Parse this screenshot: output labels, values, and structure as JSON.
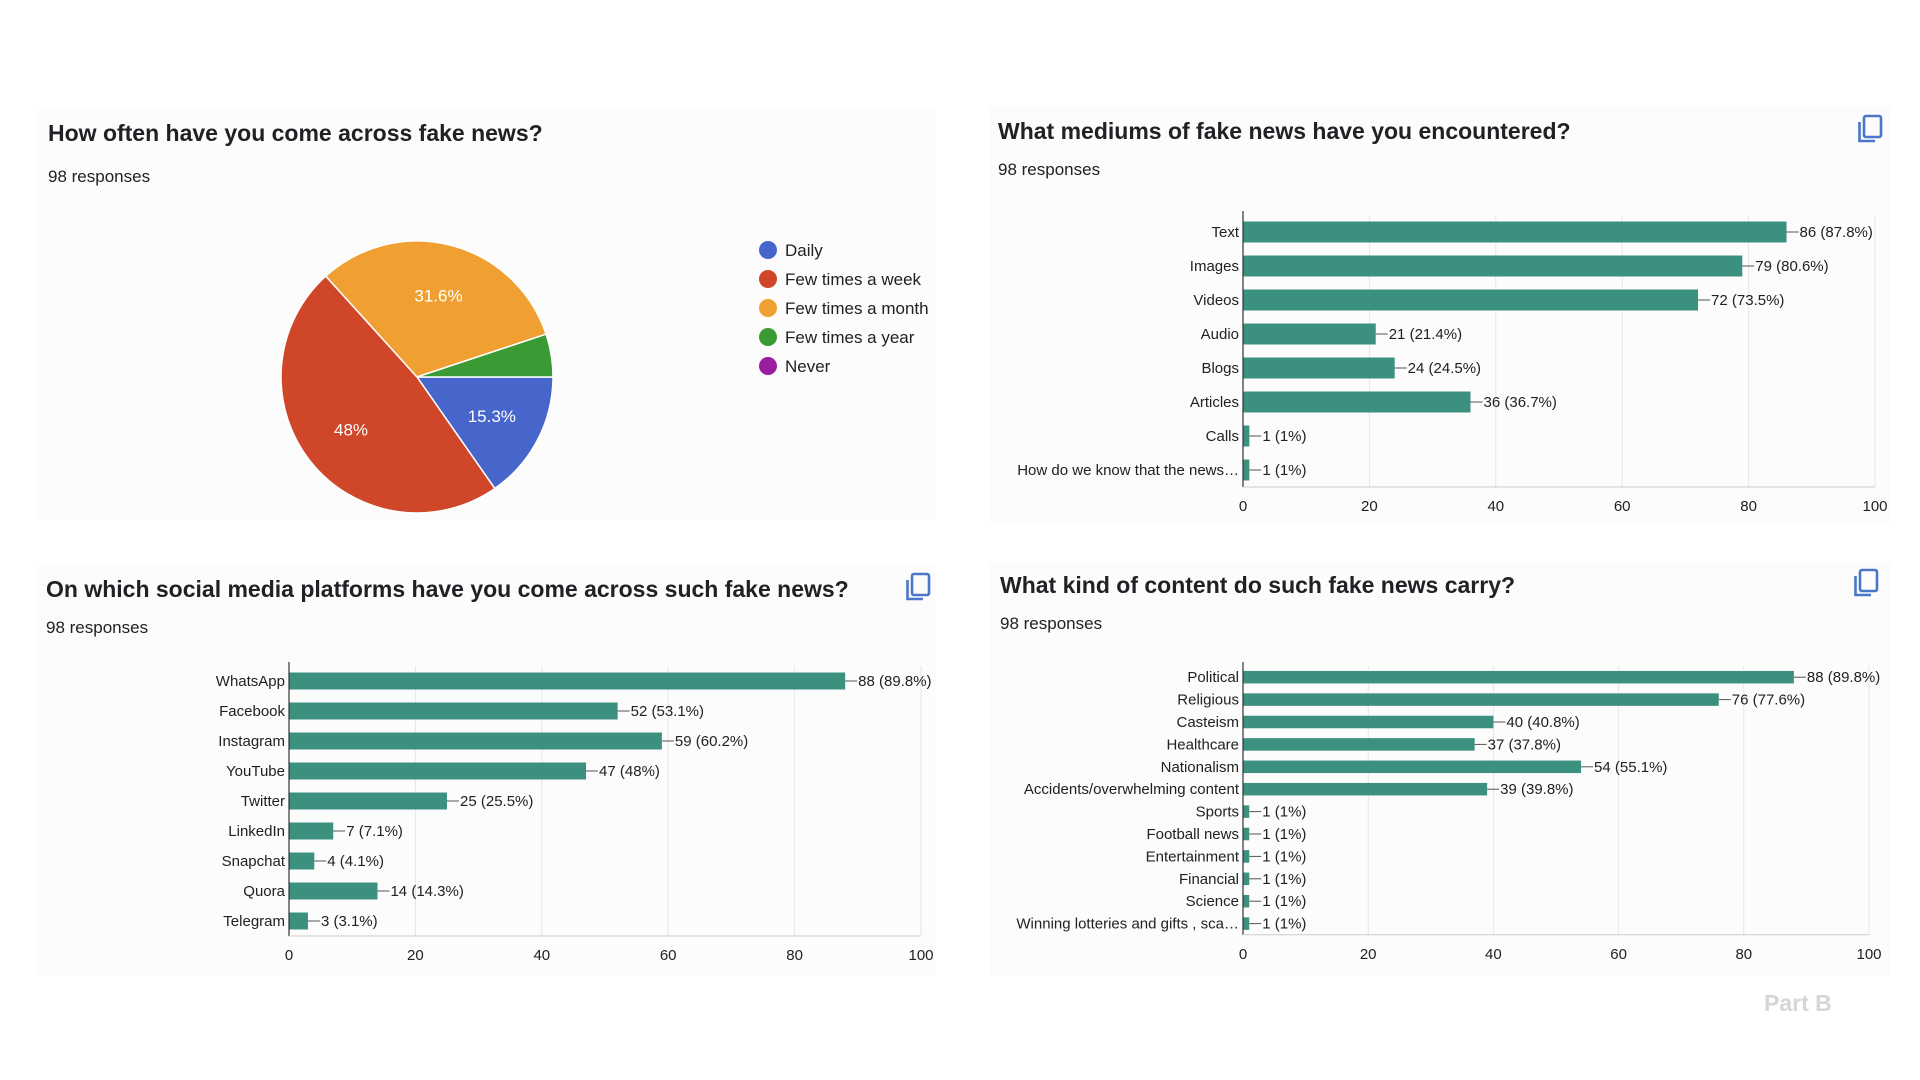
{
  "footer": "Part B",
  "colors": {
    "bar": "#3b9080",
    "axis": "#333333",
    "grid": "#e6e6e6",
    "icon": "#4a76c9"
  },
  "chart_data": [
    {
      "type": "pie",
      "title": "How often have you come across fake news?",
      "subtitle": "98 responses",
      "slices": [
        {
          "label": "Daily",
          "value": 15.3,
          "display": "15.3%",
          "color": "#4766cc"
        },
        {
          "label": "Few times a week",
          "value": 48,
          "display": "48%",
          "color": "#d04628"
        },
        {
          "label": "Few times a month",
          "value": 31.6,
          "display": "31.6%",
          "color": "#f0a032"
        },
        {
          "label": "Few times a year",
          "value": 5.1,
          "display": "",
          "color": "#3a9a33"
        },
        {
          "label": "Never",
          "value": 0,
          "display": "",
          "color": "#991f9f"
        }
      ],
      "legend": "right"
    },
    {
      "type": "bar",
      "orientation": "horizontal",
      "title": "What mediums of fake news have you encountered?",
      "subtitle": "98 responses",
      "categories": [
        "Text",
        "Images",
        "Videos",
        "Audio",
        "Blogs",
        "Articles",
        "Calls",
        "How do we know that the news…"
      ],
      "values": [
        86,
        79,
        72,
        21,
        24,
        36,
        1,
        1
      ],
      "labels": [
        "86 (87.8%)",
        "79 (80.6%)",
        "72 (73.5%)",
        "21 (21.4%)",
        "24 (24.5%)",
        "36 (36.7%)",
        "1 (1%)",
        "1 (1%)"
      ],
      "xlim": [
        0,
        100
      ],
      "xticks": [
        "0",
        "20",
        "40",
        "60",
        "80",
        "100"
      ]
    },
    {
      "type": "bar",
      "orientation": "horizontal",
      "title": "On which social media platforms have you come across such fake news?",
      "subtitle": "98 responses",
      "categories": [
        "WhatsApp",
        "Facebook",
        "Instagram",
        "YouTube",
        "Twitter",
        "LinkedIn",
        "Snapchat",
        "Quora",
        "Telegram"
      ],
      "values": [
        88,
        52,
        59,
        47,
        25,
        7,
        4,
        14,
        3
      ],
      "labels": [
        "88 (89.8%)",
        "52 (53.1%)",
        "59 (60.2%)",
        "47 (48%)",
        "25 (25.5%)",
        "7 (7.1%)",
        "4 (4.1%)",
        "14 (14.3%)",
        "3 (3.1%)"
      ],
      "xlim": [
        0,
        100
      ],
      "xticks": [
        "0",
        "20",
        "40",
        "60",
        "80",
        "100"
      ]
    },
    {
      "type": "bar",
      "orientation": "horizontal",
      "title": "What kind of content do such fake news carry?",
      "subtitle": "98 responses",
      "categories": [
        "Political",
        "Religious",
        "Casteism",
        "Healthcare",
        "Nationalism",
        "Accidents/overwhelming content",
        "Sports",
        "Football news",
        "Entertainment",
        "Financial",
        "Science",
        "Winning lotteries and gifts , sca…"
      ],
      "values": [
        88,
        76,
        40,
        37,
        54,
        39,
        1,
        1,
        1,
        1,
        1,
        1
      ],
      "labels": [
        "88 (89.8%)",
        "76 (77.6%)",
        "40 (40.8%)",
        "37 (37.8%)",
        "54 (55.1%)",
        "39 (39.8%)",
        "1 (1%)",
        "1 (1%)",
        "1 (1%)",
        "1 (1%)",
        "1 (1%)",
        "1 (1%)"
      ],
      "xlim": [
        0,
        100
      ],
      "xticks": [
        "0",
        "20",
        "40",
        "60",
        "80",
        "100"
      ]
    }
  ]
}
